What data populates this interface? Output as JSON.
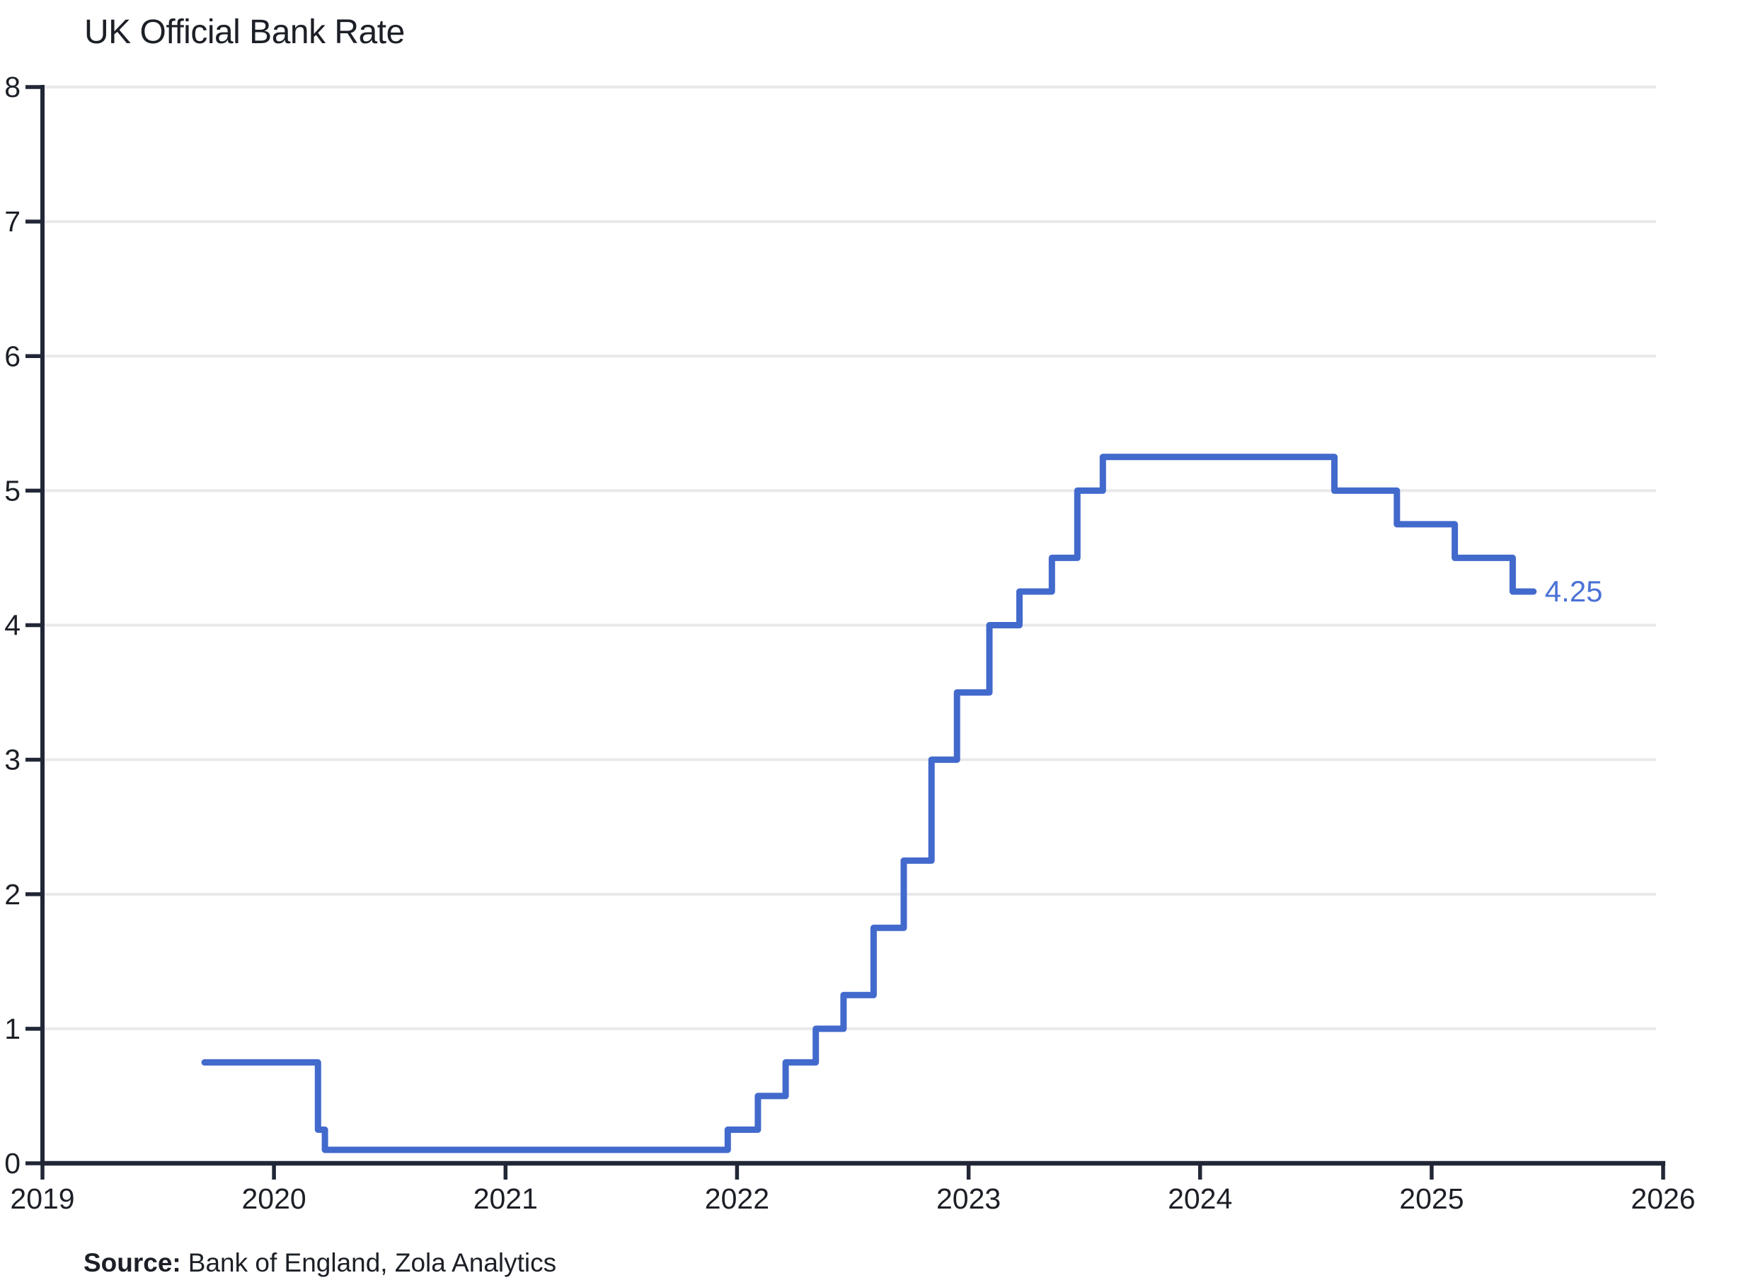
{
  "source": {
    "label": "Source:",
    "text": "Bank of England, Zola Analytics"
  },
  "colors": {
    "background": "#ffffff",
    "line": "#4269cc",
    "annotation": "#4a72d6",
    "axis": "#212736",
    "grid": "#e9e9ec",
    "text": "#1c1f26"
  },
  "chart_data": {
    "type": "line",
    "line_style": "step-after",
    "title": "UK Official Bank Rate",
    "xlabel": "",
    "ylabel": "",
    "xlim": [
      2019,
      2026
    ],
    "ylim": [
      0,
      8
    ],
    "grid": "horizontal",
    "legend": "none",
    "x_ticks": [
      "2019",
      "2020",
      "2021",
      "2022",
      "2023",
      "2024",
      "2025",
      "2026"
    ],
    "y_ticks": [
      "0",
      "1",
      "2",
      "3",
      "4",
      "5",
      "6",
      "7",
      "8"
    ],
    "series": [
      {
        "name": "UK Official Bank Rate",
        "color": "#4269cc",
        "steps": [
          [
            2019.7,
            0.75
          ],
          [
            2020.19,
            0.25
          ],
          [
            2020.22,
            0.1
          ],
          [
            2021.96,
            0.25
          ],
          [
            2022.09,
            0.5
          ],
          [
            2022.21,
            0.75
          ],
          [
            2022.34,
            1.0
          ],
          [
            2022.46,
            1.25
          ],
          [
            2022.59,
            1.75
          ],
          [
            2022.72,
            2.25
          ],
          [
            2022.84,
            3.0
          ],
          [
            2022.95,
            3.5
          ],
          [
            2023.09,
            4.0
          ],
          [
            2023.22,
            4.25
          ],
          [
            2023.36,
            4.5
          ],
          [
            2023.47,
            5.0
          ],
          [
            2023.58,
            5.25
          ],
          [
            2024.58,
            5.0
          ],
          [
            2024.85,
            4.75
          ],
          [
            2025.1,
            4.5
          ],
          [
            2025.35,
            4.25
          ]
        ],
        "x_end": 2025.44
      }
    ],
    "end_annotation": {
      "text": "4.25",
      "x": 2025.44,
      "y": 4.25,
      "color": "#4a72d6"
    }
  }
}
